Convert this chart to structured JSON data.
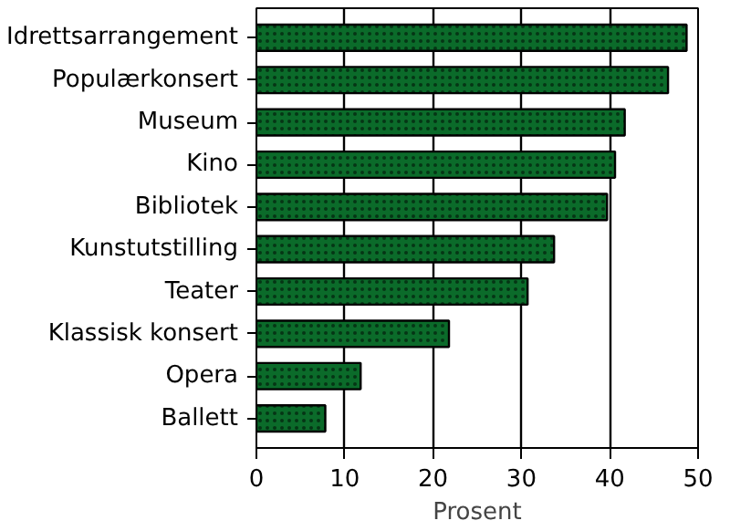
{
  "chart_data": {
    "type": "bar",
    "orientation": "horizontal",
    "xlabel": "Prosent",
    "categories": [
      "Idrettsarrangement",
      "Populærkonsert",
      "Museum",
      "Kino",
      "Bibliotek",
      "Kunstutstilling",
      "Teater",
      "Klassisk konsert",
      "Opera",
      "Ballett"
    ],
    "values": [
      48.7,
      46.6,
      41.7,
      40.6,
      39.7,
      33.7,
      30.7,
      21.8,
      11.8,
      7.8
    ],
    "color": "#0b6b2a",
    "xlim": [
      0,
      50
    ],
    "xticks": [
      0,
      10,
      20,
      30,
      40,
      50
    ],
    "grid": "x"
  }
}
